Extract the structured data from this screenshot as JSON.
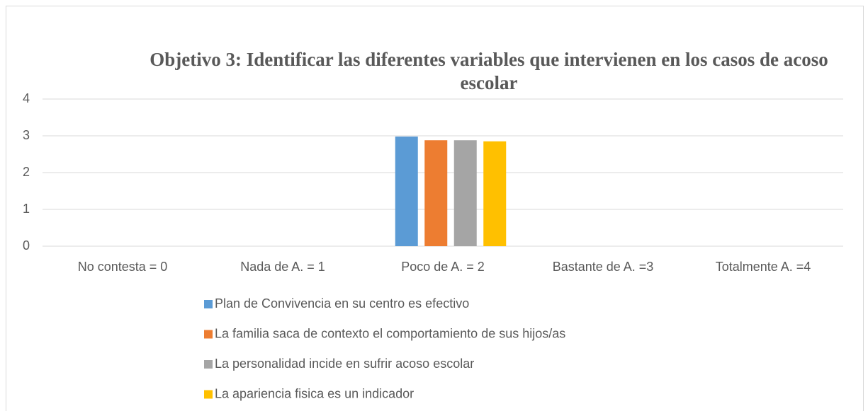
{
  "chart_data": {
    "type": "bar",
    "title": "Objetivo 3: Identificar las diferentes variables que intervienen en los casos de acoso escolar",
    "categories": [
      "No contesta = 0",
      "Nada de A. = 1",
      "Poco de A. = 2",
      "Bastante de A. =3",
      "Totalmente A. =4"
    ],
    "series": [
      {
        "name": "Plan de Convivencia en su centro es efectivo",
        "color": "#5b9bd5",
        "values": [
          null,
          null,
          2.98,
          null,
          null
        ]
      },
      {
        "name": "La familia saca de contexto el comportamiento de sus hijos/as",
        "color": "#ed7d31",
        "values": [
          null,
          null,
          2.88,
          null,
          null
        ]
      },
      {
        "name": "La personalidad incide en sufrir acoso escolar",
        "color": "#a5a5a5",
        "values": [
          null,
          null,
          2.88,
          null,
          null
        ]
      },
      {
        "name": "La apariencia fisica es un indicador",
        "color": "#ffc000",
        "values": [
          null,
          null,
          2.85,
          null,
          null
        ]
      }
    ],
    "ylim": [
      0,
      4
    ],
    "yticks": [
      0,
      1,
      2,
      3,
      4
    ],
    "grid": true,
    "legend": "bottom"
  }
}
